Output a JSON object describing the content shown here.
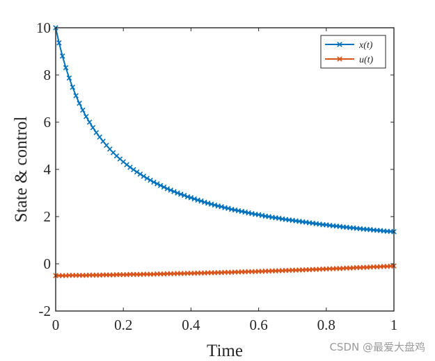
{
  "chart_data": {
    "type": "line",
    "title": "",
    "xlabel": "Time",
    "ylabel": "State & control",
    "xlim": [
      0,
      1
    ],
    "ylim": [
      -2,
      10
    ],
    "xticks": [
      0,
      0.2,
      0.4,
      0.6,
      0.8,
      1
    ],
    "xtick_labels": [
      "0",
      "0.2",
      "0.4",
      "0.6",
      "0.8",
      "1"
    ],
    "yticks": [
      -2,
      0,
      2,
      4,
      6,
      8,
      10
    ],
    "ytick_labels": [
      "-2",
      "0",
      "2",
      "4",
      "6",
      "8",
      "10"
    ],
    "grid": false,
    "legend_position": "top-right",
    "marker": "x",
    "series": [
      {
        "name": "x(t)",
        "color": "#0072BD",
        "x": [
          0,
          0.01,
          0.02,
          0.03,
          0.04,
          0.05,
          0.06,
          0.07,
          0.08,
          0.09,
          0.1,
          0.11,
          0.12,
          0.13,
          0.14,
          0.15,
          0.16,
          0.17,
          0.18,
          0.19,
          0.2,
          0.21,
          0.22,
          0.23,
          0.24,
          0.25,
          0.26,
          0.27,
          0.28,
          0.29,
          0.3,
          0.31,
          0.32,
          0.33,
          0.34,
          0.35,
          0.36,
          0.37,
          0.38,
          0.39,
          0.4,
          0.41,
          0.42,
          0.43,
          0.44,
          0.45,
          0.46,
          0.47,
          0.48,
          0.49,
          0.5,
          0.51,
          0.52,
          0.53,
          0.54,
          0.55,
          0.56,
          0.57,
          0.58,
          0.59,
          0.6,
          0.61,
          0.62,
          0.63,
          0.64,
          0.65,
          0.66,
          0.67,
          0.68,
          0.69,
          0.7,
          0.71,
          0.72,
          0.73,
          0.74,
          0.75,
          0.76,
          0.77,
          0.78,
          0.79,
          0.8,
          0.81,
          0.82,
          0.83,
          0.84,
          0.85,
          0.86,
          0.87,
          0.88,
          0.89,
          0.9,
          0.91,
          0.92,
          0.93,
          0.94,
          0.95,
          0.96,
          0.97,
          0.98,
          0.99,
          1
        ],
        "y": [
          10,
          9.36,
          8.8,
          8.31,
          7.87,
          7.48,
          7.12,
          6.8,
          6.51,
          6.24,
          6.0,
          5.77,
          5.56,
          5.37,
          5.19,
          5.02,
          4.86,
          4.71,
          4.57,
          4.44,
          4.32,
          4.2,
          4.09,
          3.99,
          3.89,
          3.8,
          3.71,
          3.62,
          3.54,
          3.46,
          3.39,
          3.32,
          3.25,
          3.18,
          3.12,
          3.06,
          3.0,
          2.95,
          2.9,
          2.84,
          2.8,
          2.75,
          2.7,
          2.66,
          2.61,
          2.57,
          2.53,
          2.49,
          2.45,
          2.42,
          2.38,
          2.35,
          2.31,
          2.28,
          2.25,
          2.22,
          2.19,
          2.16,
          2.13,
          2.1,
          2.08,
          2.05,
          2.02,
          2.0,
          1.97,
          1.95,
          1.93,
          1.9,
          1.88,
          1.86,
          1.84,
          1.82,
          1.8,
          1.78,
          1.76,
          1.74,
          1.72,
          1.7,
          1.68,
          1.66,
          1.65,
          1.63,
          1.61,
          1.6,
          1.58,
          1.56,
          1.55,
          1.53,
          1.52,
          1.5,
          1.49,
          1.47,
          1.46,
          1.45,
          1.43,
          1.42,
          1.41,
          1.39,
          1.38,
          1.37,
          1.36
        ]
      },
      {
        "name": "u(t)",
        "color": "#D95319",
        "x": [
          0,
          0.01,
          0.02,
          0.03,
          0.04,
          0.05,
          0.06,
          0.07,
          0.08,
          0.09,
          0.1,
          0.11,
          0.12,
          0.13,
          0.14,
          0.15,
          0.16,
          0.17,
          0.18,
          0.19,
          0.2,
          0.21,
          0.22,
          0.23,
          0.24,
          0.25,
          0.26,
          0.27,
          0.28,
          0.29,
          0.3,
          0.31,
          0.32,
          0.33,
          0.34,
          0.35,
          0.36,
          0.37,
          0.38,
          0.39,
          0.4,
          0.41,
          0.42,
          0.43,
          0.44,
          0.45,
          0.46,
          0.47,
          0.48,
          0.49,
          0.5,
          0.51,
          0.52,
          0.53,
          0.54,
          0.55,
          0.56,
          0.57,
          0.58,
          0.59,
          0.6,
          0.61,
          0.62,
          0.63,
          0.64,
          0.65,
          0.66,
          0.67,
          0.68,
          0.69,
          0.7,
          0.71,
          0.72,
          0.73,
          0.74,
          0.75,
          0.76,
          0.77,
          0.78,
          0.79,
          0.8,
          0.81,
          0.82,
          0.83,
          0.84,
          0.85,
          0.86,
          0.87,
          0.88,
          0.89,
          0.9,
          0.91,
          0.92,
          0.93,
          0.94,
          0.95,
          0.96,
          0.97,
          0.98,
          0.99,
          1
        ],
        "y": [
          -0.5,
          -0.5,
          -0.5,
          -0.5,
          -0.49,
          -0.49,
          -0.49,
          -0.49,
          -0.49,
          -0.49,
          -0.48,
          -0.48,
          -0.48,
          -0.48,
          -0.47,
          -0.47,
          -0.47,
          -0.47,
          -0.46,
          -0.46,
          -0.46,
          -0.46,
          -0.45,
          -0.45,
          -0.45,
          -0.45,
          -0.44,
          -0.44,
          -0.44,
          -0.44,
          -0.43,
          -0.43,
          -0.43,
          -0.42,
          -0.42,
          -0.42,
          -0.41,
          -0.41,
          -0.41,
          -0.4,
          -0.4,
          -0.4,
          -0.39,
          -0.39,
          -0.39,
          -0.38,
          -0.38,
          -0.38,
          -0.37,
          -0.37,
          -0.36,
          -0.36,
          -0.36,
          -0.35,
          -0.35,
          -0.34,
          -0.34,
          -0.33,
          -0.33,
          -0.33,
          -0.32,
          -0.32,
          -0.31,
          -0.31,
          -0.3,
          -0.3,
          -0.29,
          -0.29,
          -0.28,
          -0.28,
          -0.27,
          -0.27,
          -0.26,
          -0.26,
          -0.25,
          -0.25,
          -0.24,
          -0.24,
          -0.23,
          -0.22,
          -0.22,
          -0.21,
          -0.21,
          -0.2,
          -0.2,
          -0.19,
          -0.18,
          -0.18,
          -0.17,
          -0.16,
          -0.16,
          -0.15,
          -0.15,
          -0.14,
          -0.13,
          -0.13,
          -0.12,
          -0.11,
          -0.11,
          -0.1,
          -0.09
        ]
      }
    ]
  },
  "watermark": "CSDN @最爱大盘鸡"
}
